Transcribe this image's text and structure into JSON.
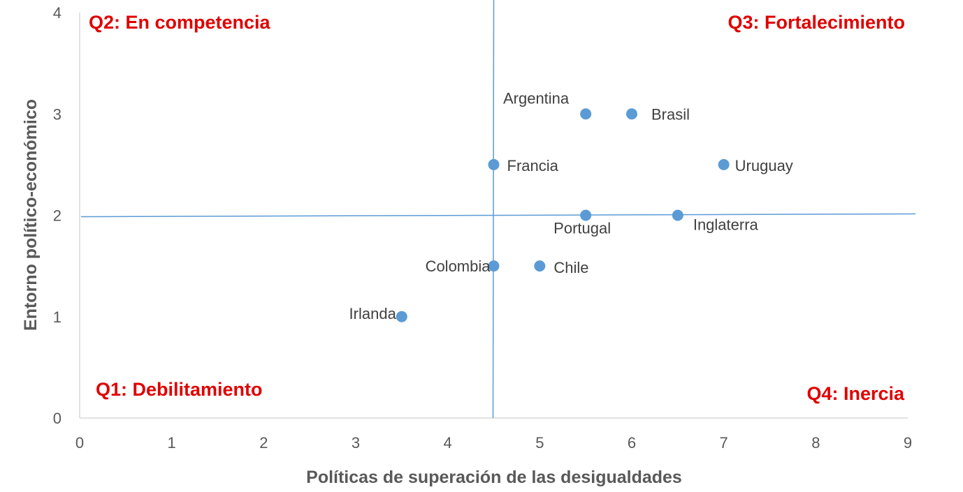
{
  "chart_data": {
    "type": "scatter",
    "title": "",
    "xlabel": "Políticas de superación de las desigualdades",
    "ylabel": "Entorno político-económico",
    "xlim": [
      0,
      9
    ],
    "ylim": [
      0,
      4
    ],
    "x_ticks": [
      "0",
      "1",
      "2",
      "3",
      "4",
      "5",
      "6",
      "7",
      "8",
      "9"
    ],
    "y_ticks": [
      "0",
      "1",
      "2",
      "3",
      "4"
    ],
    "grid": false,
    "legend": "none",
    "marker_color": "#5b9bd5",
    "reference_lines": {
      "x": 4.5,
      "y": 2,
      "color": "#5b9bd5"
    },
    "points": [
      {
        "label": "Argentina",
        "x": 5.5,
        "y": 3
      },
      {
        "label": "Brasil",
        "x": 6,
        "y": 3
      },
      {
        "label": "Francia",
        "x": 4.5,
        "y": 2.5
      },
      {
        "label": "Uruguay",
        "x": 7,
        "y": 2.5
      },
      {
        "label": "Portugal",
        "x": 5.5,
        "y": 2
      },
      {
        "label": "Inglaterra",
        "x": 6.5,
        "y": 2
      },
      {
        "label": "Colombia",
        "x": 4.5,
        "y": 1.5
      },
      {
        "label": "Chile",
        "x": 5,
        "y": 1.5
      },
      {
        "label": "Irlanda",
        "x": 3.5,
        "y": 1
      }
    ],
    "annotations": {
      "q2": "Q2: En competencia",
      "q3": "Q3: Fortalecimiento",
      "q1": "Q1: Debilitamiento",
      "q4": "Q4: Inercia"
    },
    "annotation_color": "#e00000"
  }
}
